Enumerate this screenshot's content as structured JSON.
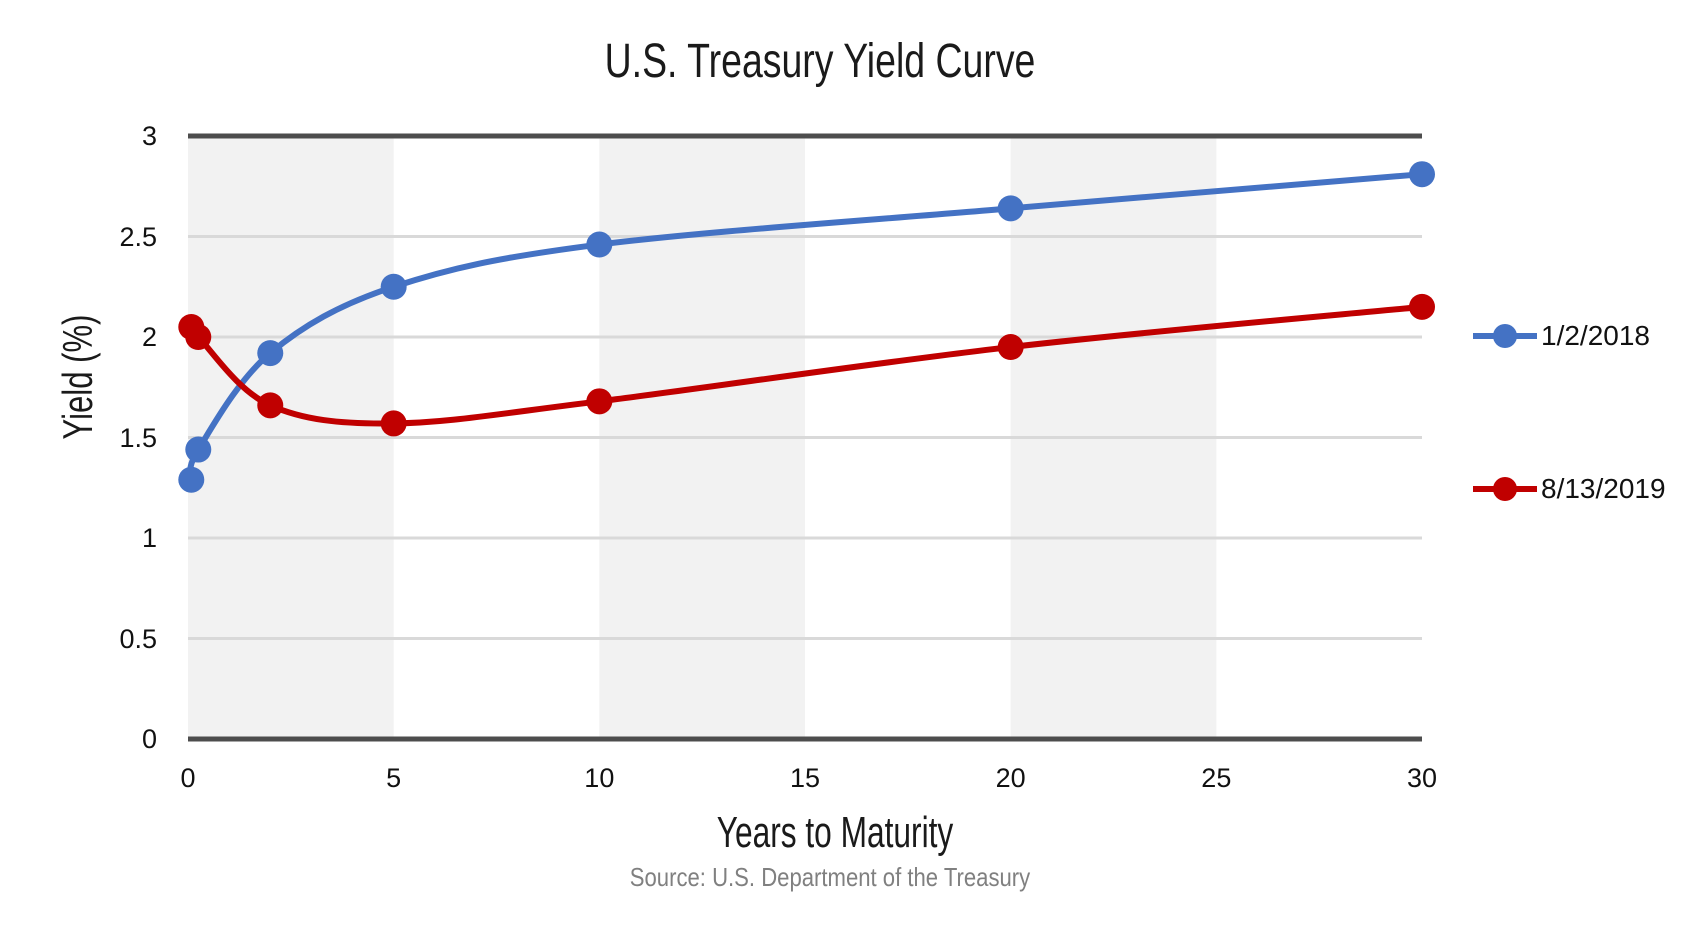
{
  "chart_data": {
    "type": "line",
    "title": "U.S. Treasury Yield Curve",
    "xlabel": "Years to Maturity",
    "ylabel": "Yield (%)",
    "source": "Source: U.S. Department of the Treasury",
    "x": [
      0.08,
      0.25,
      2,
      5,
      10,
      20,
      30
    ],
    "series": [
      {
        "name": "1/2/2018",
        "color": "#4472C4",
        "values": [
          1.29,
          1.44,
          1.92,
          2.25,
          2.46,
          2.64,
          2.81
        ]
      },
      {
        "name": "8/13/2019",
        "color": "#C00000",
        "values": [
          2.05,
          2.0,
          1.66,
          1.57,
          1.68,
          1.95,
          2.15
        ]
      }
    ],
    "xlim": [
      0,
      30
    ],
    "ylim": [
      0,
      3
    ],
    "x_ticks": [
      0,
      5,
      10,
      15,
      20,
      25,
      30
    ],
    "y_ticks": [
      0,
      0.5,
      1,
      1.5,
      2,
      2.5,
      3
    ],
    "shaded_bands_x": [
      [
        0,
        5
      ],
      [
        10,
        15
      ],
      [
        20,
        25
      ]
    ],
    "legend_position": "right",
    "grid": "horizontal"
  },
  "colors": {
    "band_fill": "#F2F2F2",
    "gridline": "#D9D9D9",
    "axis_line": "#4D4D4D",
    "tick_text": "#111111",
    "source_text": "#808080"
  }
}
